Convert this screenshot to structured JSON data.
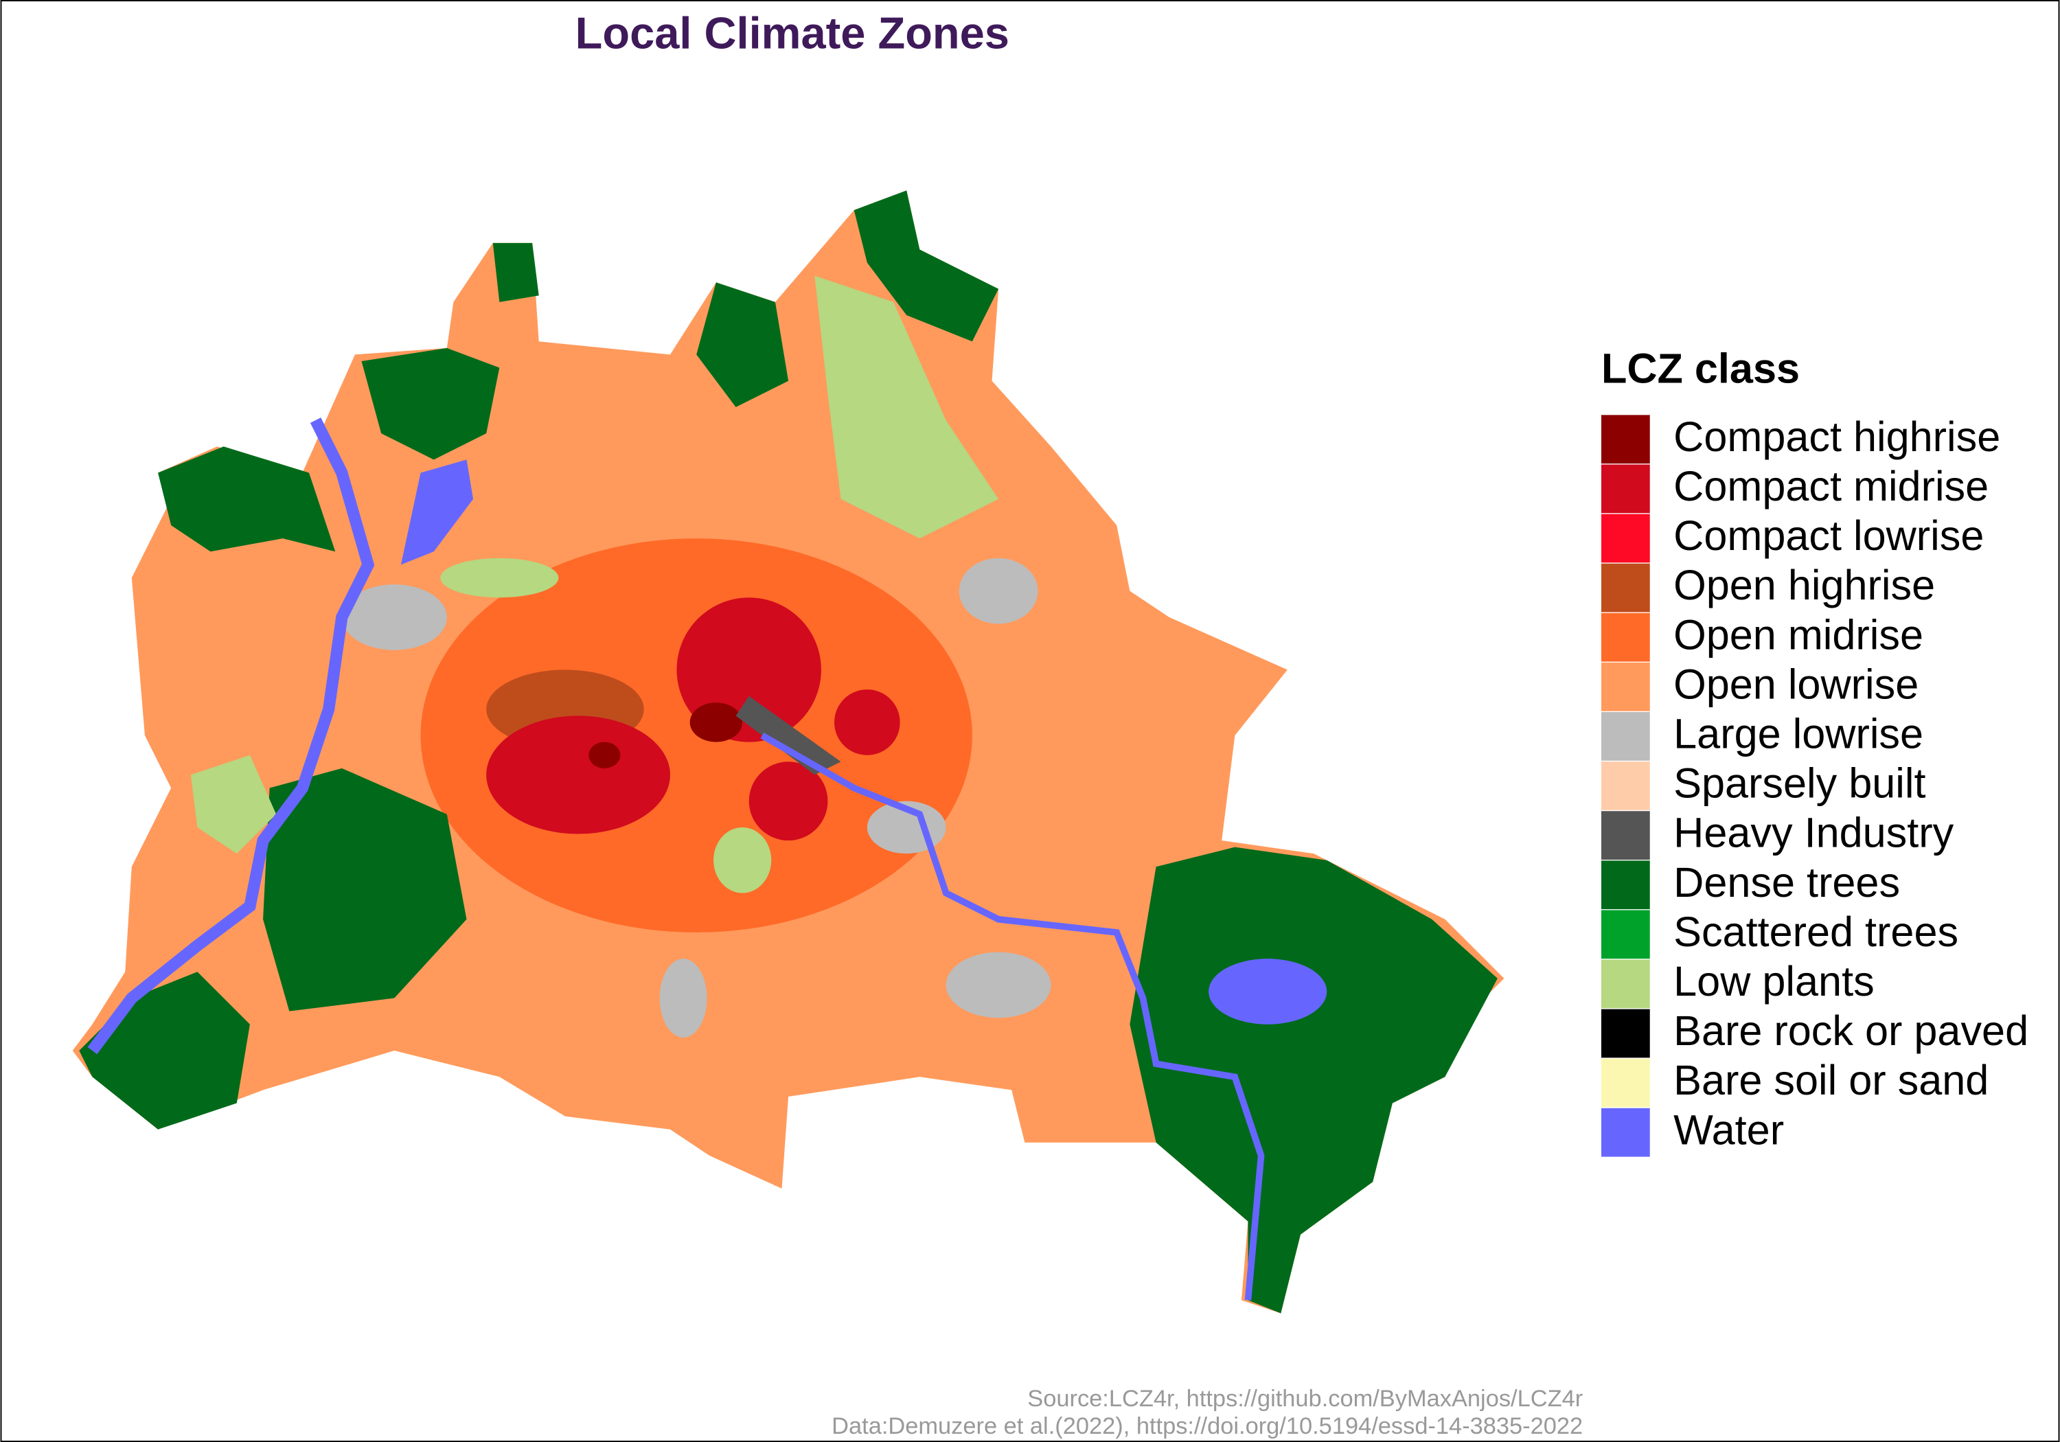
{
  "title": "Local Climate Zones",
  "legend": {
    "title": "LCZ class",
    "items": [
      {
        "name": "Compact highrise",
        "color": "#8c0000"
      },
      {
        "name": "Compact midrise",
        "color": "#d10a1e"
      },
      {
        "name": "Compact lowrise",
        "color": "#ff0a26"
      },
      {
        "name": "Open highrise",
        "color": "#bf4d1c"
      },
      {
        "name": "Open midrise",
        "color": "#ff6a28"
      },
      {
        "name": "Open lowrise",
        "color": "#ff9a5c"
      },
      {
        "name": "Large lowrise",
        "color": "#bcbcbc"
      },
      {
        "name": "Sparsely built",
        "color": "#ffccaa"
      },
      {
        "name": "Heavy Industry",
        "color": "#555555"
      },
      {
        "name": "Dense trees",
        "color": "#006a1a"
      },
      {
        "name": "Scattered trees",
        "color": "#00a22a"
      },
      {
        "name": "Low plants",
        "color": "#b5d880"
      },
      {
        "name": "Bare rock or paved",
        "color": "#000000"
      },
      {
        "name": "Bare soil or sand",
        "color": "#fcf7b0"
      },
      {
        "name": "Water",
        "color": "#6666ff"
      }
    ]
  },
  "caption": [
    "Source:LCZ4r, https://github.com/ByMaxAnjos/LCZ4r",
    "Data:Demuzere et al.(2022), https://doi.org/10.5194/essd-14-3835-2022"
  ]
}
